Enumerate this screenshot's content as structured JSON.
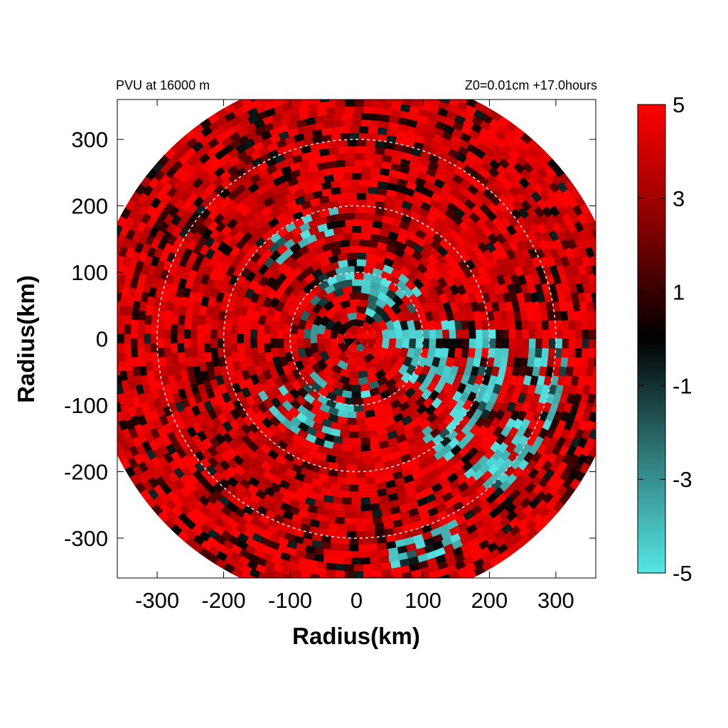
{
  "chart_data": {
    "type": "heatmap",
    "title_left": "PVU at 16000 m",
    "title_right": "Z0=0.01cm  +17.0hours",
    "xlabel": "Radius(km)",
    "ylabel": "Radius(km)",
    "xlim": [
      -360,
      360
    ],
    "ylim": [
      -360,
      360
    ],
    "xticks": [
      {
        "value": -300,
        "label": "-300"
      },
      {
        "value": -200,
        "label": "-200"
      },
      {
        "value": -100,
        "label": "-100"
      },
      {
        "value": 0,
        "label": "0"
      },
      {
        "value": 100,
        "label": "100"
      },
      {
        "value": 200,
        "label": "200"
      },
      {
        "value": 300,
        "label": "300"
      }
    ],
    "yticks": [
      {
        "value": 300,
        "label": "300"
      },
      {
        "value": 200,
        "label": "200"
      },
      {
        "value": 100,
        "label": "100"
      },
      {
        "value": 0,
        "label": "0"
      },
      {
        "value": -100,
        "label": "-100"
      },
      {
        "value": -200,
        "label": "-200"
      },
      {
        "value": -300,
        "label": "-300"
      }
    ],
    "reference_circles_km": [
      100,
      200,
      300
    ],
    "data_domain_radius_km": 400,
    "colorbar": {
      "min": -5,
      "max": 5,
      "ticks": [
        {
          "value": 5,
          "label": "5"
        },
        {
          "value": 3,
          "label": "3"
        },
        {
          "value": 1,
          "label": "1"
        },
        {
          "value": -1,
          "label": "-1"
        },
        {
          "value": -3,
          "label": "-3"
        },
        {
          "value": -5,
          "label": "-5"
        }
      ],
      "colors": [
        {
          "value": -5,
          "color": "#55e6e6"
        },
        {
          "value": -2.5,
          "color": "#2f7a7a"
        },
        {
          "value": 0,
          "color": "#000000"
        },
        {
          "value": 2.5,
          "color": "#8a0000"
        },
        {
          "value": 5,
          "color": "#ff0000"
        }
      ]
    },
    "cyan_regions": [
      {
        "r_km": 95,
        "theta_deg": 80,
        "dr_km": 25,
        "dtheta_deg": 45
      },
      {
        "r_km": 70,
        "theta_deg": 25,
        "dr_km": 35,
        "dtheta_deg": 40
      },
      {
        "r_km": 120,
        "theta_deg": -15,
        "dr_km": 40,
        "dtheta_deg": 25
      },
      {
        "r_km": 100,
        "theta_deg": -110,
        "dr_km": 20,
        "dtheta_deg": 30
      },
      {
        "r_km": 150,
        "theta_deg": -125,
        "dr_km": 25,
        "dtheta_deg": 25
      },
      {
        "r_km": 200,
        "theta_deg": -25,
        "dr_km": 30,
        "dtheta_deg": 30
      },
      {
        "r_km": 290,
        "theta_deg": -25,
        "dr_km": 35,
        "dtheta_deg": 25
      },
      {
        "r_km": 180,
        "theta_deg": 120,
        "dr_km": 20,
        "dtheta_deg": 20
      },
      {
        "r_km": 330,
        "theta_deg": -72,
        "dr_km": 20,
        "dtheta_deg": 10
      }
    ]
  }
}
